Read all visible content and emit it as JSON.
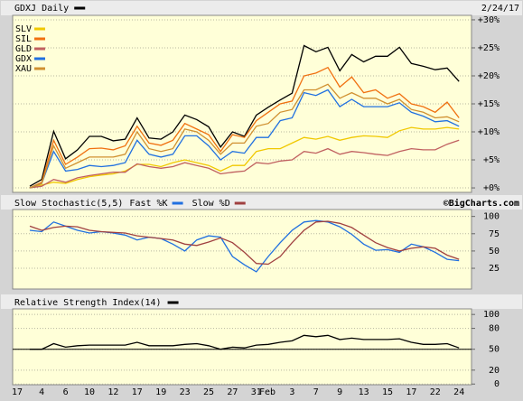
{
  "chart_data": [
    {
      "type": "line",
      "date": "2/24/17",
      "ylim": [
        -0.8,
        30.8
      ],
      "grid": true,
      "yticks": [
        {
          "value": 0,
          "label": "+0%"
        },
        {
          "value": 5,
          "label": "+5%"
        },
        {
          "value": 10,
          "label": "+10%"
        },
        {
          "value": 15,
          "label": "+15%"
        },
        {
          "value": 20,
          "label": "+20%"
        },
        {
          "value": 25,
          "label": "+25%"
        },
        {
          "value": 30,
          "label": "+30%"
        }
      ],
      "series": [
        {
          "name": "GDXJ Daily",
          "color": "#000000",
          "values": [
            0.3,
            1.5,
            10.1,
            5.2,
            6.8,
            9.2,
            9.2,
            8.4,
            8.7,
            12.5,
            8.9,
            8.7,
            10,
            13,
            12.2,
            10.9,
            7.3,
            10,
            9.2,
            13,
            14.4,
            15.7,
            16.9,
            25.4,
            24.3,
            25.1,
            20.9,
            23.8,
            22.5,
            23.5,
            23.5,
            25.1,
            22.2,
            21.7,
            21.1,
            21.4,
            19
          ]
        },
        {
          "name": "SLV",
          "color": "#f0c800",
          "values": [
            0,
            0.5,
            1,
            0.8,
            1.5,
            2,
            2.3,
            2.5,
            3,
            4.2,
            4.2,
            3.8,
            4.5,
            5,
            4.5,
            4,
            3,
            4,
            4,
            6.5,
            7,
            7,
            8,
            9,
            8.7,
            9.2,
            8.5,
            9,
            9.3,
            9.2,
            9,
            10.2,
            10.8,
            10.5,
            10.5,
            10.8,
            10.5
          ]
        },
        {
          "name": "SIL",
          "color": "#f07010",
          "values": [
            0,
            1,
            8.5,
            4.2,
            5.5,
            7,
            7.1,
            6.8,
            7.5,
            11,
            8,
            7.6,
            8.5,
            11.5,
            10.5,
            9.5,
            6.5,
            9.5,
            9,
            12,
            13.5,
            15,
            15.5,
            20,
            20.5,
            21.5,
            18,
            19.8,
            17,
            17.5,
            16,
            16.8,
            15,
            14.5,
            13.5,
            15.3,
            12.5
          ]
        },
        {
          "name": "GLD",
          "color": "#c06060",
          "values": [
            0,
            0.3,
            1.5,
            1,
            1.8,
            2.2,
            2.5,
            2.8,
            2.8,
            4.3,
            3.8,
            3.5,
            3.8,
            4.5,
            4,
            3.5,
            2.5,
            2.8,
            3,
            4.5,
            4.3,
            4.8,
            5,
            6.5,
            6.2,
            7,
            6,
            6.5,
            6.3,
            6,
            5.8,
            6.5,
            7,
            6.8,
            6.8,
            7.8,
            8.5
          ]
        },
        {
          "name": "GDX",
          "color": "#2070e0",
          "values": [
            0,
            0.8,
            6.5,
            3,
            3.3,
            4,
            3.8,
            4,
            4.5,
            8.5,
            6,
            5.5,
            6,
            9.3,
            9.3,
            7.5,
            5,
            6.5,
            6.2,
            9,
            9,
            12,
            12.5,
            17,
            16.5,
            17.5,
            14.5,
            15.8,
            14.5,
            14.5,
            14.5,
            15.2,
            13.5,
            12.8,
            11.8,
            12,
            11
          ]
        },
        {
          "name": "XAU",
          "color": "#d09030",
          "values": [
            0,
            0.8,
            7.5,
            3.5,
            4.5,
            5.5,
            5.5,
            5.5,
            6,
            10,
            7,
            6.5,
            7,
            10.5,
            10,
            8.5,
            6,
            8,
            8,
            11,
            11.5,
            13.5,
            14,
            17.5,
            17.5,
            18.5,
            16,
            17,
            16,
            16,
            15,
            15.8,
            14,
            13.5,
            12.5,
            12.7,
            11.8
          ]
        }
      ]
    },
    {
      "type": "line",
      "title": "Slow Stochastic(5,5)",
      "credit": "©BigCharts.com",
      "ylim": [
        -5,
        110
      ],
      "grid": true,
      "yticks": [
        25,
        50,
        75,
        100
      ],
      "series": [
        {
          "name": "Fast %K",
          "color": "#2070e0",
          "values": [
            80,
            78,
            92,
            86,
            80,
            76,
            78,
            76,
            73,
            66,
            70,
            68,
            60,
            50,
            66,
            72,
            70,
            42,
            30,
            20,
            42,
            62,
            80,
            92,
            94,
            92,
            85,
            74,
            60,
            51,
            52,
            48,
            60,
            56,
            48,
            38,
            36
          ]
        },
        {
          "name": "Slow %D",
          "color": "#a04040",
          "values": [
            86,
            80,
            84,
            86,
            85,
            80,
            78,
            77,
            76,
            72,
            70,
            68,
            66,
            60,
            58,
            63,
            69,
            62,
            48,
            32,
            31,
            42,
            62,
            80,
            92,
            93,
            90,
            84,
            73,
            62,
            55,
            50,
            54,
            56,
            54,
            44,
            38
          ]
        }
      ]
    },
    {
      "type": "line",
      "title": "Relative Strength Index(14)",
      "ylim": [
        -1,
        108
      ],
      "grid": true,
      "reference_line": 50,
      "yticks": [
        0,
        20,
        50,
        80,
        100
      ],
      "year_label": "17",
      "month_label": "Feb",
      "categories": [
        null,
        "4",
        null,
        "6",
        null,
        "10",
        null,
        "12",
        null,
        "17",
        null,
        "19",
        null,
        "23",
        null,
        "25",
        null,
        "27",
        null,
        "31",
        null,
        null,
        "3",
        null,
        "7",
        null,
        "9",
        null,
        "13",
        null,
        "15",
        null,
        "17",
        null,
        "22",
        null,
        "24"
      ],
      "series": [
        {
          "color": "#000000",
          "values": [
            50,
            50,
            58,
            53,
            55,
            56,
            56,
            56,
            56,
            60,
            55,
            55,
            55,
            57,
            58,
            55,
            50,
            53,
            52,
            56,
            57,
            60,
            62,
            70,
            68,
            70,
            64,
            66,
            64,
            64,
            64,
            65,
            60,
            57,
            57,
            58,
            52
          ]
        }
      ]
    }
  ]
}
